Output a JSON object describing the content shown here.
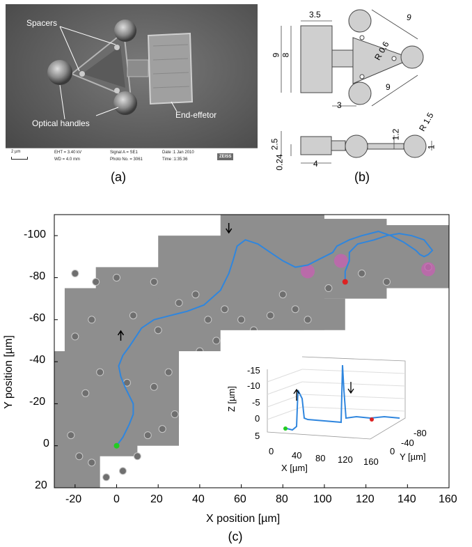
{
  "panel_a": {
    "caption": "(a)",
    "labels": {
      "spacers": "Spacers",
      "optical_handles": "Optical handles",
      "end_effector": "End-effetor"
    },
    "infobar": {
      "scale": "2 µm",
      "eht": "EHT = 3.40 kV",
      "wd": "WD = 4.0 mm",
      "signal": "Signal A = SE1",
      "photo": "Photo No. = 3061",
      "date": "Date :1 Jan 2010",
      "time": "Time :1:35:36",
      "logo": "ZEISS"
    }
  },
  "panel_b": {
    "caption": "(b)",
    "dims": {
      "d1": "3.5",
      "d2": "9",
      "d3": "8",
      "d4": "9",
      "d5": "R 0.6",
      "d6": "9",
      "d7": "3",
      "d8": "R 1.5",
      "d9": "2.5",
      "d10": "1.2",
      "d11": "1",
      "d12": "0.24",
      "d13": "4"
    }
  },
  "panel_c": {
    "caption": "(c)",
    "xlabel": "X position [µm]",
    "ylabel": "Y position [µm]",
    "xticks": [
      "-20",
      "0",
      "20",
      "40",
      "60",
      "80",
      "100",
      "120",
      "140",
      "160"
    ],
    "yticks": [
      "-100",
      "-80",
      "-60",
      "-40",
      "-20",
      "0",
      "20"
    ],
    "inset": {
      "zlabel": "Z [µm]",
      "xlabel": "X [µm]",
      "ylabel": "Y [µm]",
      "zticks": [
        "-15",
        "-10",
        "-5",
        "0",
        "5"
      ],
      "xticks": [
        "0",
        "40",
        "80",
        "120",
        "160"
      ],
      "yticks": [
        "0",
        "-40",
        "-80"
      ]
    },
    "colors": {
      "trajectory": "#2f86de",
      "start": "#22cc22",
      "end": "#dd2222",
      "cells": "#c463b0"
    }
  },
  "chart_data": {
    "type": "line",
    "xlabel": "X position [µm]",
    "ylabel": "Y position [µm]",
    "xlim": [
      -30,
      160
    ],
    "ylim": [
      20,
      -110
    ],
    "series": [
      {
        "x": [
          0,
          3,
          6,
          8,
          8,
          6,
          4,
          2,
          1,
          3,
          6,
          8,
          10,
          12,
          18,
          26,
          34,
          42,
          50,
          54,
          56,
          58,
          62,
          68,
          74,
          80,
          86,
          92,
          96,
          100,
          104,
          106,
          112,
          118,
          126,
          132,
          138,
          144,
          146,
          148,
          150,
          152,
          148,
          142,
          136,
          130,
          124,
          120,
          116,
          114,
          112,
          112,
          110,
          110
        ],
        "y": [
          0,
          -4,
          -10,
          -15,
          -20,
          -24,
          -28,
          -33,
          -38,
          -43,
          -47,
          -50,
          -53,
          -56,
          -60,
          -62,
          -64,
          -67,
          -74,
          -82,
          -88,
          -95,
          -98,
          -96,
          -92,
          -88,
          -85,
          -86,
          -88,
          -90,
          -92,
          -95,
          -98,
          -100,
          -102,
          -100,
          -97,
          -93,
          -91,
          -90,
          -91,
          -93,
          -98,
          -100,
          -101,
          -100,
          -98,
          -97,
          -96,
          -94,
          -92,
          -88,
          -83,
          -78
        ]
      }
    ],
    "markers": [
      {
        "name": "start",
        "x": 0,
        "y": 0
      },
      {
        "name": "end",
        "x": 110,
        "y": -78
      }
    ],
    "inset_3d": {
      "type": "line",
      "xlabel": "X [µm]",
      "ylabel": "Y [µm]",
      "zlabel": "Z [µm]",
      "xlim": [
        0,
        160
      ],
      "ylim": [
        0,
        -80
      ],
      "zlim": [
        5,
        -15
      ]
    }
  }
}
